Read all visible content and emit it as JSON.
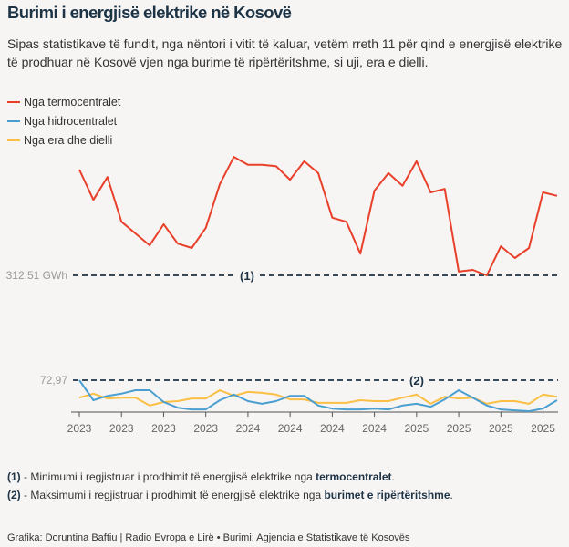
{
  "title": "Burimi i energjisë elektrike në Kosovë",
  "subtitle": "Sipas statistikave të fundit, nga nëntori i vitit të kaluar, vetëm rreth 11 për qind e energjisë elektrike të prodhuar në Kosovë vjen nga burime të ripërtëritshme, si uji, era e dielli.",
  "legend": [
    {
      "label": "Nga termocentralet",
      "color": "#e8402a"
    },
    {
      "label": "Nga hidrocentralet",
      "color": "#4a9fd0"
    },
    {
      "label": "Nga era dhe dielli",
      "color": "#fbbf45"
    }
  ],
  "notes": [
    {
      "marker": "(1)",
      "text": " - Minimumi i regjistruar i prodhimit të energjisë elektrike nga ",
      "bold": "termocentralet",
      "end": "."
    },
    {
      "marker": "(2)",
      "text": " - Maksimumi i regjistruar i prodhimit të energjisë elektrike nga ",
      "bold": "burimet e ripërtëritshme",
      "end": "."
    }
  ],
  "credit": "Grafika: Doruntina Baftiu | Radio Evropa e Lirë • Burimi: Agjencia e Statistikave të Kosovës",
  "chart_data": {
    "type": "line",
    "title": "Burimi i energjisë elektrike në Kosovë",
    "xlabel": "",
    "ylabel": "GWh",
    "ylim": [
      0,
      600
    ],
    "x_tick_labels": [
      "2023",
      "2023",
      "2023",
      "2023",
      "2024",
      "2024",
      "2024",
      "2024",
      "2025",
      "2025",
      "2025",
      "2025"
    ],
    "x_tick_every": 3,
    "grid": false,
    "legend_position": "top-left",
    "reference_lines": [
      {
        "value": 312.51,
        "label": "312,51 GWh",
        "marker": "(1)"
      },
      {
        "value": 72.97,
        "label": "72,97",
        "marker": "(2)"
      }
    ],
    "series": [
      {
        "name": "Nga termocentralet",
        "color": "#e8402a",
        "values": [
          554,
          485,
          537,
          435,
          408,
          381,
          429,
          385,
          375,
          421,
          521,
          583,
          565,
          565,
          562,
          531,
          573,
          546,
          444,
          435,
          362,
          506,
          546,
          517,
          573,
          502,
          510,
          321,
          325,
          312.51,
          379,
          352,
          375,
          502,
          494
        ]
      },
      {
        "name": "Nga hidrocentralet",
        "color": "#4a9fd0",
        "values": [
          72.97,
          27,
          37,
          42,
          50,
          50,
          23,
          10,
          6,
          6,
          27,
          40,
          25,
          19,
          25,
          37,
          37,
          15,
          8,
          6,
          6,
          8,
          6,
          15,
          19,
          12,
          29,
          50,
          33,
          15,
          6,
          4,
          2,
          8,
          27
        ]
      },
      {
        "name": "Nga era dhe dielli",
        "color": "#fbbf45",
        "values": [
          33,
          42,
          31,
          33,
          33,
          15,
          23,
          25,
          31,
          31,
          50,
          37,
          46,
          44,
          40,
          29,
          29,
          21,
          21,
          21,
          27,
          25,
          25,
          33,
          40,
          19,
          35,
          31,
          33,
          19,
          25,
          25,
          19,
          40,
          35
        ]
      }
    ]
  }
}
